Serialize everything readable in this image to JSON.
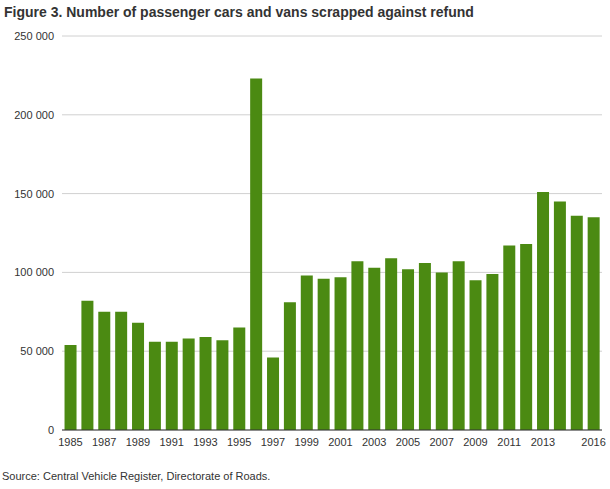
{
  "chart_data": {
    "type": "bar",
    "title": "Figure 3. Number of passenger cars and vans scrapped against refund",
    "source": "Source: Central Vehicle Register, Directorate of Roads.",
    "categories": [
      "1985",
      null,
      "1987",
      null,
      "1989",
      null,
      "1991",
      null,
      "1993",
      null,
      "1995",
      null,
      "1997",
      null,
      "1999",
      null,
      "2001",
      null,
      "2003",
      null,
      "2005",
      null,
      "2007",
      null,
      "2009",
      null,
      "2011",
      null,
      "2013",
      null,
      null,
      "2016"
    ],
    "values": [
      54000,
      82000,
      75000,
      75000,
      68000,
      56000,
      56000,
      58000,
      59000,
      57000,
      65000,
      223000,
      46000,
      81000,
      98000,
      96000,
      97000,
      107000,
      103000,
      109000,
      102000,
      106000,
      100000,
      107000,
      95000,
      99000,
      117000,
      118000,
      151000,
      145000,
      136000,
      135000
    ],
    "color": "#4b8a12",
    "ylim": [
      0,
      250000
    ],
    "yticks": [
      0,
      {
        "value": 50000,
        "label": "50 000"
      },
      {
        "value": 100000,
        "label": "100 000"
      },
      {
        "value": 150000,
        "label": "150 000"
      },
      {
        "value": 200000,
        "label": "200 000"
      },
      {
        "value": 250000,
        "label": "250 000"
      }
    ],
    "grid": true
  }
}
